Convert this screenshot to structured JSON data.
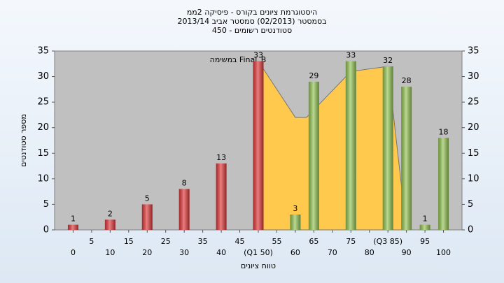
{
  "chart_data": {
    "type": "bar",
    "title": [
      "היסטוגרמת ציונים בקורס - פיסיקה 2ממ",
      "בסמסטר  (02/2013)  סמסטר אביב 2013/14",
      "סטודנטים רשומים - 450"
    ],
    "ylabel": "מספר סטודנטים",
    "xlabel": "טווח ציונים",
    "annotation": "במשימה Final_B",
    "x": [
      0,
      10,
      20,
      30,
      40,
      50,
      60,
      65,
      75,
      85,
      90,
      95,
      100
    ],
    "values": [
      1,
      2,
      5,
      8,
      13,
      33,
      3,
      29,
      33,
      32,
      28,
      1,
      18
    ],
    "colors": [
      "#e0383a",
      "#e0383a",
      "#e0383a",
      "#e0383a",
      "#e0383a",
      "#e0383a",
      "#94c455",
      "#94c455",
      "#94c455",
      "#94c455",
      "#94c455",
      "#94c455",
      "#94c455"
    ],
    "area": {
      "x": [
        50,
        60,
        63,
        75,
        80,
        85,
        90
      ],
      "values": [
        33,
        22,
        22,
        31,
        31.5,
        32,
        0
      ],
      "color": "#ffc94d"
    },
    "xlim": [
      -5,
      105
    ],
    "ylim": [
      0,
      35
    ],
    "xticks": [
      0,
      5,
      10,
      15,
      20,
      25,
      30,
      35,
      40,
      45,
      {
        "value": 50,
        "label": "(Q1 50)"
      },
      55,
      60,
      65,
      70,
      75,
      80,
      {
        "value": 85,
        "label": "(Q3 85)"
      },
      90,
      95,
      100
    ],
    "yticks": [
      0,
      5,
      10,
      15,
      20,
      25,
      30,
      35
    ]
  }
}
